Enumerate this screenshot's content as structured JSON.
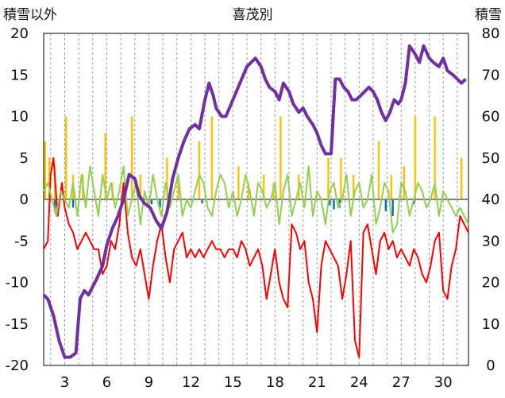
{
  "chart_data": {
    "type": "line",
    "title": "喜茂別",
    "left_axis_label": "積雪以外",
    "right_axis_label": "積雪",
    "x_ticks": [
      "3",
      "6",
      "9",
      "12",
      "15",
      "18",
      "21",
      "24",
      "27",
      "30"
    ],
    "x_tick_days": [
      3,
      6,
      9,
      12,
      15,
      18,
      21,
      24,
      27,
      30
    ],
    "x_range_days": [
      1.5,
      31.8
    ],
    "y_left": {
      "min": -20,
      "max": 20,
      "ticks": [
        "20",
        "15",
        "10",
        "5",
        "0",
        "-5",
        "-10",
        "-15",
        "-20"
      ]
    },
    "y_right": {
      "min": 0,
      "max": 80,
      "ticks": [
        "80",
        "70",
        "60",
        "50",
        "40",
        "30",
        "20",
        "10",
        "0"
      ]
    },
    "grid": "dashed vertical lines at every day; horizontal zero line",
    "series": [
      {
        "color": "#7030a0",
        "axis": "right",
        "x": [
          1.5,
          1.8,
          2.2,
          2.6,
          3.0,
          3.4,
          3.8,
          4.1,
          4.4,
          4.7,
          5.0,
          5.3,
          5.7,
          6.0,
          6.4,
          6.8,
          7.2,
          7.6,
          8.0,
          8.3,
          8.7,
          9.1,
          9.5,
          9.9,
          10.3,
          10.7,
          11.1,
          11.5,
          11.9,
          12.3,
          12.6,
          13.0,
          13.3,
          13.6,
          13.8,
          14.0,
          14.2,
          14.5,
          16.0,
          16.3,
          16.6,
          17.0,
          17.3,
          17.6,
          18.0,
          18.3,
          18.6,
          19.0,
          19.3,
          19.7,
          20.0,
          20.3,
          20.7,
          21.0,
          21.3,
          21.6,
          22.0,
          22.3,
          22.6,
          22.9,
          23.2,
          23.5,
          23.8,
          24.1,
          24.4,
          24.7,
          25.0,
          25.3,
          25.6,
          25.9,
          26.2,
          26.5,
          26.8,
          27.0,
          27.3,
          27.6,
          28.0,
          28.3,
          28.6,
          29.0,
          29.3,
          29.7,
          30.0,
          30.3,
          30.7,
          31.0,
          31.3,
          31.6
        ],
        "values": [
          17,
          16,
          12,
          6,
          2,
          2,
          3,
          16,
          18,
          17,
          19,
          21,
          24,
          29,
          33,
          36,
          40,
          46,
          45,
          41,
          39,
          38,
          35,
          33,
          37,
          45,
          50,
          54,
          57,
          58,
          57,
          64,
          68,
          65,
          62,
          61,
          60,
          60,
          72,
          73,
          74,
          72,
          69,
          67,
          66,
          64,
          68,
          66,
          63,
          61,
          62,
          60,
          58,
          56,
          53,
          51,
          51,
          69,
          69,
          67,
          66,
          64,
          64,
          65,
          66,
          67,
          66,
          64,
          61,
          59,
          61,
          64,
          63,
          64,
          68,
          77,
          75,
          73,
          77,
          74,
          73,
          72,
          74,
          71,
          70,
          69,
          68,
          69
        ]
      },
      {
        "color": "#ff0000",
        "axis": "left",
        "x": [
          1.5,
          1.8,
          2.0,
          2.2,
          2.5,
          2.8,
          3.0,
          3.3,
          3.6,
          3.9,
          4.2,
          4.5,
          4.8,
          5.1,
          5.4,
          5.7,
          6.0,
          6.3,
          6.6,
          6.9,
          7.2,
          7.5,
          7.8,
          8.1,
          8.4,
          8.7,
          9.0,
          9.3,
          9.6,
          9.9,
          10.2,
          10.5,
          10.8,
          11.1,
          11.4,
          11.7,
          12.0,
          12.3,
          12.6,
          12.9,
          13.2,
          13.5,
          13.8,
          14.1,
          14.4,
          14.7,
          15.0,
          15.3,
          15.6,
          15.9,
          16.2,
          16.5,
          16.8,
          17.1,
          17.4,
          17.7,
          18.0,
          18.3,
          18.6,
          18.9,
          19.2,
          19.5,
          19.8,
          20.1,
          20.4,
          20.7,
          21.0,
          21.3,
          21.6,
          21.9,
          22.2,
          22.5,
          22.8,
          23.1,
          23.4,
          23.7,
          24.0,
          24.3,
          24.6,
          24.9,
          25.2,
          25.5,
          25.8,
          26.1,
          26.4,
          26.7,
          27.0,
          27.3,
          27.6,
          27.9,
          28.2,
          28.5,
          28.8,
          29.1,
          29.4,
          29.7,
          30.0,
          30.3,
          30.6,
          30.9,
          31.2,
          31.5,
          31.8
        ],
        "values": [
          -6,
          -5,
          3,
          5,
          -2,
          2,
          -1,
          -3,
          -4,
          -6,
          -5,
          -4,
          -5,
          -6,
          -6,
          -9,
          -8,
          -5,
          -6,
          -3,
          2,
          -4,
          -7,
          -8,
          -6,
          -9,
          -12,
          -8,
          -5,
          -3,
          -7,
          -10,
          -6,
          -5,
          -4,
          -7,
          -6,
          -7,
          -6,
          -7,
          -6,
          -5,
          -6,
          -6,
          -7,
          -6,
          -6,
          -7,
          -5,
          -6,
          -8,
          -7,
          -6,
          -8,
          -12,
          -9,
          -6,
          -10,
          -12,
          -13,
          -3,
          -4,
          -6,
          -5,
          -10,
          -12,
          -16,
          -8,
          -5,
          -6,
          -7,
          -8,
          -12,
          -9,
          -5,
          -17,
          -19,
          -4,
          -3,
          -6,
          -9,
          -5,
          -4,
          -6,
          -5,
          -7,
          -6,
          -7,
          -8,
          -6,
          -7,
          -9,
          -10,
          -8,
          -5,
          -4,
          -11,
          -12,
          -8,
          -6,
          -2,
          -3,
          -4
        ]
      },
      {
        "color": "#92d050",
        "axis": "left",
        "x": [
          1.5,
          1.8,
          2.1,
          2.4,
          2.7,
          3.0,
          3.3,
          3.6,
          3.9,
          4.2,
          4.5,
          4.8,
          5.1,
          5.4,
          5.7,
          6.0,
          6.3,
          6.6,
          6.9,
          7.2,
          7.5,
          7.8,
          8.1,
          8.4,
          8.7,
          9.0,
          9.3,
          9.6,
          9.9,
          10.2,
          10.5,
          10.8,
          11.1,
          11.4,
          11.7,
          12.0,
          12.3,
          12.6,
          12.9,
          13.2,
          13.5,
          13.8,
          14.1,
          14.4,
          14.7,
          15.0,
          15.3,
          15.6,
          15.9,
          16.2,
          16.5,
          16.8,
          17.1,
          17.4,
          17.7,
          18.0,
          18.3,
          18.6,
          18.9,
          19.2,
          19.5,
          19.8,
          20.1,
          20.4,
          20.7,
          21.0,
          21.3,
          21.6,
          21.9,
          22.2,
          22.5,
          22.8,
          23.1,
          23.4,
          23.7,
          24.0,
          24.3,
          24.6,
          24.9,
          25.2,
          25.5,
          25.8,
          26.1,
          26.4,
          26.7,
          27.0,
          27.3,
          27.6,
          27.9,
          28.2,
          28.5,
          28.8,
          29.1,
          29.4,
          29.7,
          30.0,
          30.3,
          30.6,
          30.9,
          31.2,
          31.5,
          31.8
        ],
        "values": [
          1,
          2,
          0,
          -2,
          1,
          0,
          -1,
          2,
          -2,
          3,
          -1,
          4,
          1,
          -2,
          3,
          0,
          2,
          -1,
          1,
          4,
          -2,
          0,
          2,
          -3,
          1,
          -1,
          3,
          0,
          -2,
          2,
          -1,
          1,
          3,
          -2,
          0,
          -1,
          1,
          3,
          2,
          -1,
          -2,
          1,
          3,
          2,
          -1,
          1,
          -2,
          0,
          3,
          1,
          -2,
          2,
          1,
          -1,
          0,
          2,
          -3,
          1,
          3,
          -2,
          0,
          2,
          -1,
          4,
          -2,
          1,
          0,
          -3,
          1,
          2,
          -1,
          0,
          3,
          -2,
          1,
          2,
          -1,
          0,
          3,
          -3,
          -1,
          2,
          1,
          -4,
          -3,
          2,
          1,
          -2,
          0,
          2,
          1,
          -1,
          0,
          2,
          -2,
          1,
          0,
          -1,
          -2,
          -1,
          -2,
          -3
        ]
      },
      {
        "color": "#ffc000",
        "axis": "left",
        "type": "bar",
        "x": [
          1.6,
          1.9,
          2.3,
          3.1,
          3.6,
          4.3,
          5.9,
          6.4,
          7.8,
          8.4,
          10.3,
          11.1,
          12.6,
          13.5,
          15.4,
          16.1,
          17.2,
          17.9,
          18.4,
          19.7,
          21.8,
          22.7,
          23.6,
          25.4,
          26.3,
          27.2,
          28.0,
          29.4,
          31.3
        ],
        "values": [
          7,
          5,
          4,
          10,
          3,
          3,
          8,
          2,
          10,
          3,
          5,
          3,
          7,
          10,
          4,
          2,
          3,
          2,
          10,
          3,
          5,
          5,
          3,
          7,
          3,
          4,
          10,
          10,
          5
        ]
      },
      {
        "color": "#0070c0",
        "axis": "left",
        "type": "bar",
        "x": [
          2.3,
          3.6,
          9.2,
          9.8,
          10.5,
          12.8,
          21.9,
          22.2,
          22.6,
          25.9,
          26.4,
          27.9
        ],
        "values": [
          -1.5,
          -1,
          -0.6,
          -1,
          -0.6,
          -0.5,
          -0.7,
          -1.2,
          -1,
          -1.4,
          -2,
          -0.6
        ]
      }
    ]
  }
}
